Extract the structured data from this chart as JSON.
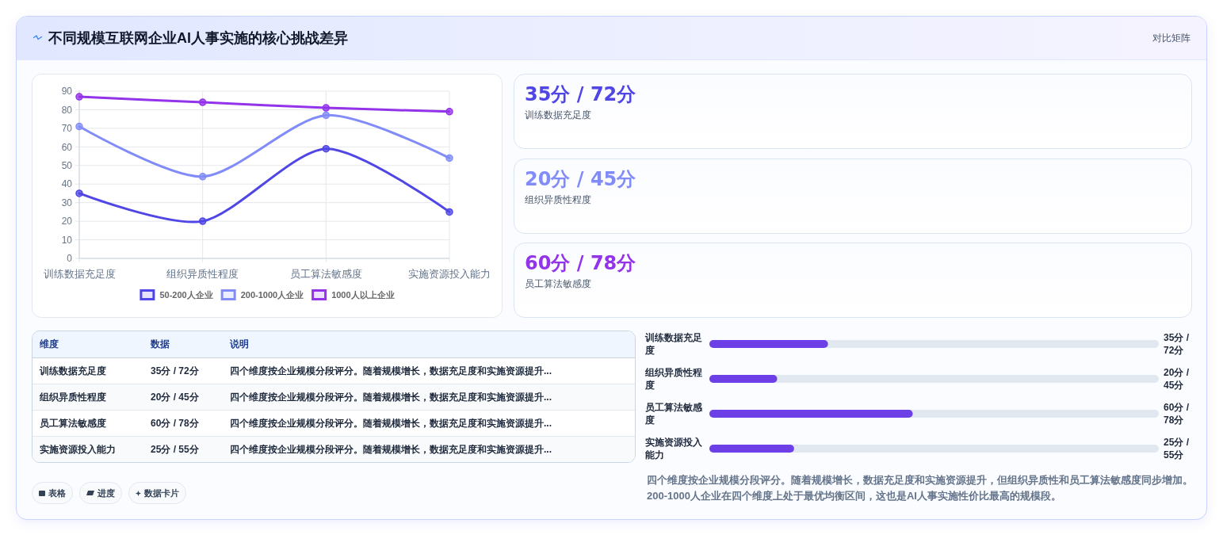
{
  "chart_data": [
    {
      "type": "other",
      "title": "不同规模互联网企业AI人事实施的核心挑战差异",
      "subtitle": "对比矩阵"
    },
    {
      "type": "line",
      "categories": [
        "训练数据充足度",
        "组织异质性程度",
        "员工算法敏感度",
        "实施资源投入能力"
      ],
      "series": [
        {
          "name": "50-200人企业",
          "color": "#4f46e5",
          "values": [
            35,
            20,
            59,
            25
          ]
        },
        {
          "name": "200-1000人企业",
          "color": "#818cf8",
          "values": [
            71,
            44,
            77,
            54
          ]
        },
        {
          "name": "1000人以上企业",
          "color": "#9333ea",
          "values": [
            87,
            84,
            81,
            79
          ]
        }
      ],
      "ylim": [
        0,
        90
      ],
      "yticks": [
        0,
        10,
        20,
        30,
        40,
        50,
        60,
        70,
        80,
        90
      ],
      "grid": true,
      "legend": "bottom",
      "marker": "circle"
    },
    {
      "type": "other",
      "categories": [
        "训练数据充足度",
        "组织异质性程度",
        "员工算法敏感度"
      ],
      "value_labels": [
        "35分 / 72分",
        "20分 / 45分",
        "60分 / 78分"
      ]
    },
    {
      "type": "other",
      "categories": [
        "维度",
        "数据",
        "说明"
      ],
      "cell_labels": [
        [
          "训练数据充足度",
          "35分 / 72分",
          "四个维度按企业规模分段评分。随着规模增长，数据充足度和实施资源提升..."
        ],
        [
          "组织异质性程度",
          "20分 / 45分",
          "四个维度按企业规模分段评分。随着规模增长，数据充足度和实施资源提升..."
        ],
        [
          "员工算法敏感度",
          "60分 / 78分",
          "四个维度按企业规模分段评分。随着规模增长，数据充足度和实施资源提升..."
        ],
        [
          "实施资源投入能力",
          "25分 / 55分",
          "四个维度按企业规模分段评分。随着规模增长，数据充足度和实施资源提升..."
        ]
      ],
      "annotations": [
        "表格",
        "进度",
        "数据卡片"
      ]
    },
    {
      "type": "bar",
      "orientation": "horizontal",
      "categories": [
        "训练数据充足度",
        "组织异质性程度",
        "员工算法敏感度",
        "实施资源投入能力"
      ],
      "values": [
        35,
        20,
        60,
        25
      ],
      "value_labels": [
        "35分 / 72分",
        "20分 / 45分",
        "60分 / 78分",
        "25分 / 55分"
      ],
      "color": "#6d3fe7",
      "annotations": [
        "四个维度按企业规模分段评分。随着规模增长，数据充足度和实施资源提升，但组织异质性和员工算法敏感度同步增加。200-1000人企业在四个维度上处于最优均衡区间，这也是AI人事实施性价比最高的规模段。"
      ]
    }
  ]
}
